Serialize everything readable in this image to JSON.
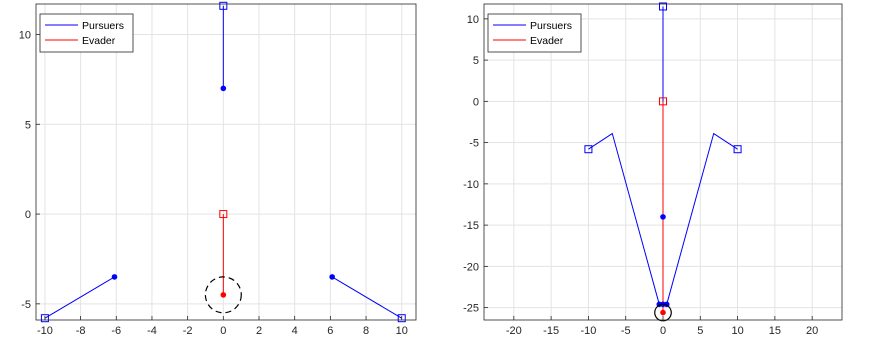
{
  "chart_data": [
    {
      "type": "line",
      "title": "",
      "xlabel": "",
      "ylabel": "",
      "xlim": [
        -10.5,
        10.8
      ],
      "ylim": [
        -5.9,
        11.7
      ],
      "xticks": [
        "-10",
        "-8",
        "-6",
        "-4",
        "-2",
        "0",
        "2",
        "4",
        "6",
        "8",
        "10"
      ],
      "xtick_values": [
        -10,
        -8,
        -6,
        -4,
        -2,
        0,
        2,
        4,
        6,
        8,
        10
      ],
      "yticks": [
        "-5",
        "0",
        "5",
        "10"
      ],
      "ytick_values": [
        -5,
        0,
        5,
        10
      ],
      "grid": true,
      "legend": {
        "position": "top-left",
        "entries": [
          {
            "name": "Pursuers",
            "color": "#0000ff"
          },
          {
            "name": "Evader",
            "color": "#ff0000"
          }
        ]
      },
      "series": [
        {
          "name": "Pursuers",
          "color": "#0000ff",
          "x": [
            0,
            0
          ],
          "y": [
            11.6,
            7.0
          ],
          "start": [
            0,
            11.6
          ],
          "end": [
            0,
            7.0
          ]
        },
        {
          "name": "",
          "color": "#0000ff",
          "x": [
            -10,
            -6.1
          ],
          "y": [
            -5.8,
            -3.5
          ],
          "start": [
            -10,
            -5.8
          ],
          "end": [
            -6.1,
            -3.5
          ]
        },
        {
          "name": "",
          "color": "#0000ff",
          "x": [
            10,
            6.1
          ],
          "y": [
            -5.8,
            -3.5
          ],
          "start": [
            10,
            -5.8
          ],
          "end": [
            6.1,
            -3.5
          ]
        },
        {
          "name": "Evader",
          "color": "#ff0000",
          "x": [
            0,
            0
          ],
          "y": [
            0,
            -4.5
          ],
          "start": [
            0,
            0
          ],
          "end": [
            0,
            -4.5
          ]
        }
      ],
      "capture_circle": {
        "center": [
          0,
          -4.5
        ],
        "radius": 1.0,
        "style": "dashed",
        "color": "#000000"
      }
    },
    {
      "type": "line",
      "title": "",
      "xlabel": "",
      "ylabel": "",
      "xlim": [
        -24,
        24
      ],
      "ylim": [
        -26.5,
        11.8
      ],
      "xticks": [
        "-20",
        "-15",
        "-10",
        "-5",
        "0",
        "5",
        "10",
        "15",
        "20"
      ],
      "xtick_values": [
        -20,
        -15,
        -10,
        -5,
        0,
        5,
        10,
        15,
        20
      ],
      "yticks": [
        "-25",
        "-20",
        "-15",
        "-10",
        "-5",
        "0",
        "5",
        "10"
      ],
      "ytick_values": [
        -25,
        -20,
        -15,
        -10,
        -5,
        0,
        5,
        10
      ],
      "grid": true,
      "legend": {
        "position": "top-left",
        "entries": [
          {
            "name": "Pursuers",
            "color": "#0000ff"
          },
          {
            "name": "Evader",
            "color": "#ff0000"
          }
        ]
      },
      "series": [
        {
          "name": "Pursuers",
          "color": "#0000ff",
          "x": [
            0,
            0,
            0
          ],
          "y": [
            11.5,
            -14.0,
            -24.6
          ],
          "start": [
            0,
            11.5
          ],
          "end": [
            0,
            -24.6
          ],
          "mid_dot": [
            0,
            -14.0
          ]
        },
        {
          "name": "",
          "color": "#0000ff",
          "x": [
            -10,
            -6.8,
            -0.5
          ],
          "y": [
            -5.8,
            -3.9,
            -24.6
          ],
          "start": [
            -10,
            -5.8
          ],
          "end": [
            -0.5,
            -24.6
          ]
        },
        {
          "name": "",
          "color": "#0000ff",
          "x": [
            10,
            6.8,
            0.5
          ],
          "y": [
            -5.8,
            -3.9,
            -24.6
          ],
          "start": [
            10,
            -5.8
          ],
          "end": [
            0.5,
            -24.6
          ]
        },
        {
          "name": "Evader",
          "color": "#ff0000",
          "x": [
            0,
            0
          ],
          "y": [
            0,
            -25.6
          ],
          "start": [
            0,
            0
          ],
          "end": [
            0,
            -25.6
          ]
        }
      ],
      "capture_circle": {
        "center": [
          0,
          -25.6
        ],
        "radius": 1.0,
        "style": "solid",
        "color": "#000000"
      }
    }
  ]
}
